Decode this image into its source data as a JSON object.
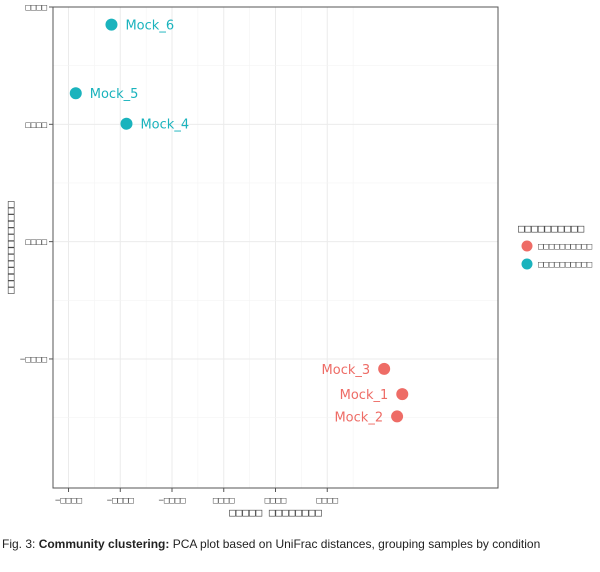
{
  "chart_data": {
    "type": "scatter",
    "title": "",
    "xlabel": "□□□□□ □□□□□□□□",
    "ylabel": "□□□□□□□□□□□□□□",
    "xlim": [
      -0.43,
      0.43
    ],
    "ylim": [
      -0.32,
      0.5
    ],
    "x_ticks": [
      {
        "value": -0.4,
        "label": "−□□□□"
      },
      {
        "value": -0.3,
        "label": "−□□□□"
      },
      {
        "value": -0.2,
        "label": "−□□□□"
      },
      {
        "value": -0.1,
        "label": "□□□□"
      },
      {
        "value": 0.0,
        "label": "□□□□"
      },
      {
        "value": 0.1,
        "label": "□□□□"
      }
    ],
    "y_ticks": [
      {
        "value": 0.5,
        "label": "□□□□"
      },
      {
        "value": 0.3,
        "label": "□□□□"
      },
      {
        "value": 0.1,
        "label": "□□□□"
      },
      {
        "value": -0.1,
        "label": "−□□□□"
      }
    ],
    "grid": true,
    "legend": {
      "placement": "right",
      "title": "□□□□□□□□□□",
      "entries": [
        {
          "label": "□□□□□□□□□□",
          "color": "#ee6c66"
        },
        {
          "label": "□□□□□□□□□□",
          "color": "#1ab3bd"
        }
      ]
    },
    "series": [
      {
        "color": "#ee6c66",
        "points": [
          {
            "label": "Mock_3",
            "x": 0.21,
            "y": -0.117
          },
          {
            "label": "Mock_1",
            "x": 0.245,
            "y": -0.16
          },
          {
            "label": "Mock_2",
            "x": 0.235,
            "y": -0.198
          }
        ]
      },
      {
        "color": "#1ab3bd",
        "points": [
          {
            "label": "Mock_6",
            "x": -0.317,
            "y": 0.47
          },
          {
            "label": "Mock_5",
            "x": -0.386,
            "y": 0.353
          },
          {
            "label": "Mock_4",
            "x": -0.288,
            "y": 0.301
          }
        ]
      }
    ]
  },
  "caption": {
    "prefix": "Fig. 3: ",
    "bold": "Community clustering:",
    "text": " PCA plot based on UniFrac distances, grouping samples by condition"
  }
}
